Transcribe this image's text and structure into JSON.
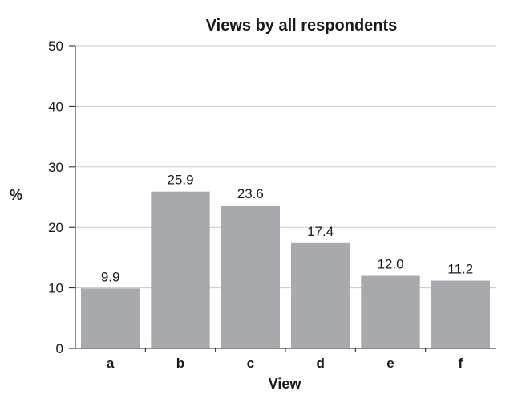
{
  "chart_data": {
    "type": "bar",
    "title": "Views by all respondents",
    "xlabel": "View",
    "ylabel": "%",
    "categories": [
      "a",
      "b",
      "c",
      "d",
      "e",
      "f"
    ],
    "values": [
      9.9,
      25.9,
      23.6,
      17.4,
      12.0,
      11.2
    ],
    "value_labels": [
      "9.9",
      "25.9",
      "23.6",
      "17.4",
      "12.0",
      "11.2"
    ],
    "ylim": [
      0,
      50
    ],
    "yticks": [
      0,
      10,
      20,
      30,
      40,
      50
    ],
    "grid": true,
    "bar_color": "#a7a9ac"
  }
}
